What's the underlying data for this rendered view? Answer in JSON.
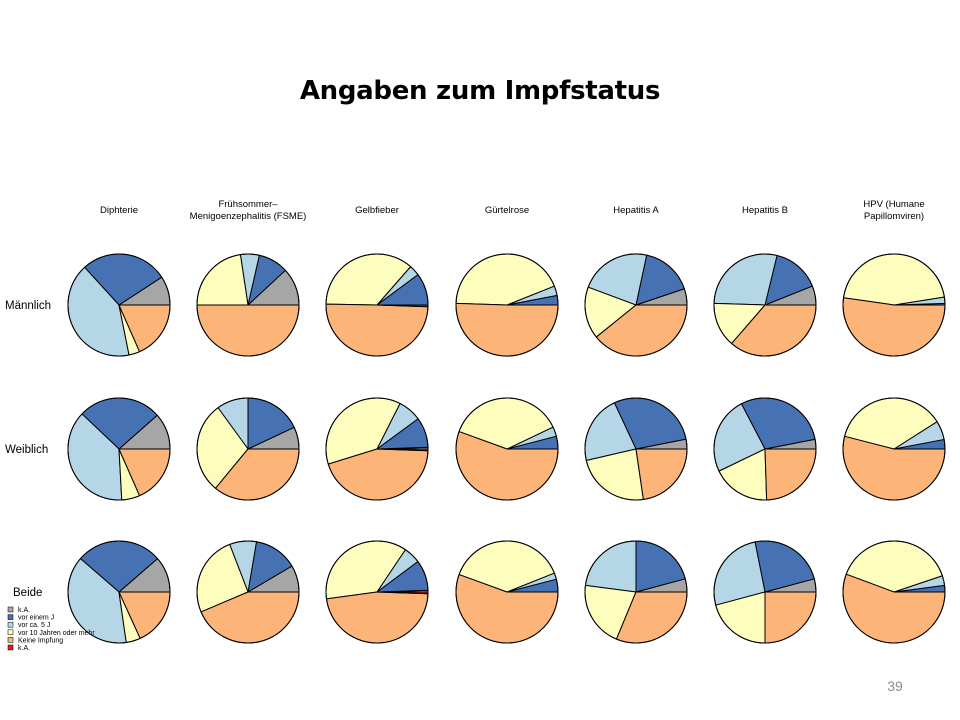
{
  "slide": {
    "title": "Angaben zum Impfstatus",
    "page_number": "39"
  },
  "chart_data": {
    "type": "pie",
    "title": "Angaben zum Impfstatus",
    "columns": [
      [
        "Diphterie"
      ],
      [
        "Frühsommer–",
        "Menigoenzephalitis (FSME)"
      ],
      [
        "Gelbfieber"
      ],
      [
        "Gürtelrose"
      ],
      [
        "Hepatitis A"
      ],
      [
        "Hepatitis B"
      ],
      [
        "HPV (Humane",
        "Papillomviren)"
      ]
    ],
    "rows": [
      "Männlich",
      "Weiblich",
      "Beide"
    ],
    "categories": [
      "k.A.",
      "vor einem J",
      "vor ca. 5 J",
      "vor 10 Jahren oder mehr",
      "Keine Impfung",
      "k.A."
    ],
    "legend_labels": [
      "k.A.",
      "vor einem J",
      "vor ca. 5 J",
      "vor 10 Jahren oder mehr",
      "Keine Impfung",
      "k.A."
    ],
    "colors": [
      "#a6a6a6",
      "#4672b4",
      "#b4d6e6",
      "#fdfdbe",
      "#fdb479",
      "#d7261e"
    ],
    "legend_position": "bottom-left",
    "series": [
      {
        "name": "Männlich",
        "values": [
          [
            8,
            24,
            36,
            3,
            16,
            0
          ],
          [
            10,
            8,
            5,
            19,
            42,
            0
          ],
          [
            0,
            9,
            3,
            32,
            44,
            0.5
          ],
          [
            0,
            3,
            3,
            43,
            50,
            0
          ],
          [
            5,
            16,
            22,
            16,
            38,
            0
          ],
          [
            6,
            15,
            28,
            14,
            36,
            0
          ],
          [
            0,
            0.5,
            2,
            45,
            52,
            0
          ]
        ]
      },
      {
        "name": "Weiblich",
        "values": [
          [
            10,
            23,
            33,
            5,
            16,
            0
          ],
          [
            7,
            18,
            10,
            29,
            36,
            0
          ],
          [
            0.5,
            9,
            7,
            35,
            42,
            0.5
          ],
          [
            0,
            4,
            3,
            37,
            55,
            0
          ],
          [
            3,
            28,
            21,
            23,
            22,
            0
          ],
          [
            3,
            29,
            24,
            18,
            24,
            0
          ],
          [
            0,
            3,
            6,
            37,
            54,
            0
          ]
        ]
      },
      {
        "name": "Beide",
        "values": [
          [
            10,
            24,
            34,
            4,
            16,
            0
          ],
          [
            8,
            13,
            8,
            24,
            41,
            0
          ],
          [
            0.5,
            9,
            5,
            34,
            44,
            0.5
          ],
          [
            0,
            4,
            2,
            38,
            55,
            0
          ],
          [
            4,
            20,
            22,
            20,
            30,
            0
          ],
          [
            4,
            23,
            25,
            20,
            24,
            0
          ],
          [
            0,
            2,
            3,
            38,
            54,
            0
          ]
        ]
      }
    ]
  }
}
